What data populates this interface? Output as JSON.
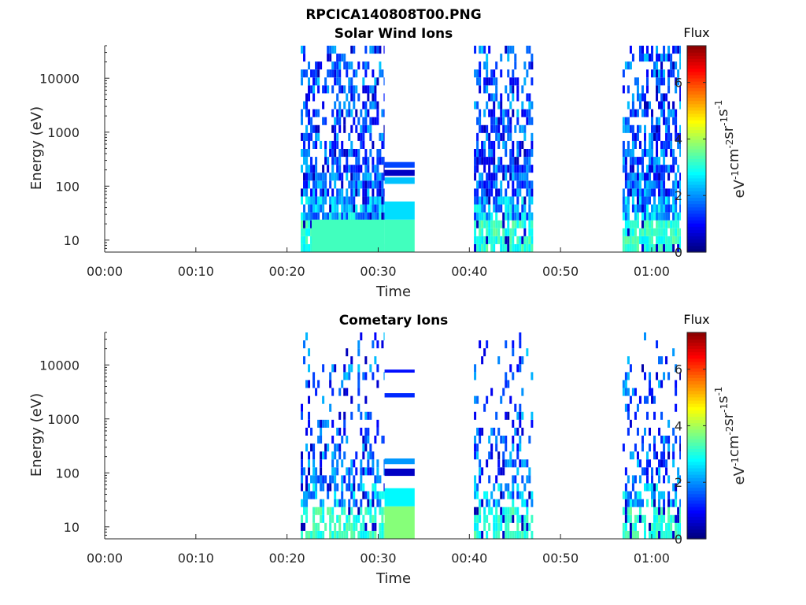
{
  "figure_title": "RPCICA140808T00.PNG",
  "colorbar": {
    "label": "Flux",
    "unit_label_parts": [
      "eV",
      "-1",
      "cm",
      "-2",
      "sr",
      "-1",
      "s",
      "-1"
    ],
    "range": [
      0,
      7.3
    ],
    "ticks": [
      "0",
      "2",
      "4",
      "6"
    ],
    "tick_values": [
      0,
      2,
      4,
      6
    ],
    "colormap": "jet"
  },
  "chart_data": [
    {
      "type": "heatmap",
      "title": "Solar Wind Ions",
      "xlabel": "Time",
      "ylabel": "Energy (eV)",
      "x_ticks": [
        "00:00",
        "00:10",
        "00:20",
        "00:30",
        "00:40",
        "00:50",
        "01:00"
      ],
      "x_tick_minutes": [
        0,
        10,
        20,
        30,
        40,
        50,
        60
      ],
      "xlim_minutes": [
        0,
        63.2
      ],
      "yscale": "log",
      "ylim": [
        6,
        40000
      ],
      "y_ticks": [
        "10",
        "100",
        "1000",
        "10000"
      ],
      "y_tick_values": [
        10,
        100,
        1000,
        10000
      ],
      "data_blocks_minutes": [
        [
          21.5,
          30.7
        ],
        [
          30.7,
          34.0
        ],
        [
          40.5,
          47.0
        ],
        [
          56.8,
          63.2
        ]
      ],
      "dense_bands": [
        {
          "x": [
            22.7,
            30.7
          ],
          "y": [
            6,
            24
          ],
          "flux": 3.2
        },
        {
          "x": [
            30.7,
            34.0
          ],
          "y": [
            6,
            24
          ],
          "flux": 3.2
        },
        {
          "x": [
            30.7,
            34.0
          ],
          "y": [
            24,
            52
          ],
          "flux": 2.5
        },
        {
          "x": [
            30.7,
            34.0
          ],
          "y": [
            110,
            145
          ],
          "flux": 2.3
        },
        {
          "x": [
            30.7,
            34.0
          ],
          "y": [
            155,
            200
          ],
          "flux": 0.5
        },
        {
          "x": [
            30.7,
            34.0
          ],
          "y": [
            220,
            280
          ],
          "flux": 1.4
        }
      ]
    },
    {
      "type": "heatmap",
      "title": "Cometary Ions",
      "xlabel": "Time",
      "ylabel": "Energy (eV)",
      "x_ticks": [
        "00:00",
        "00:10",
        "00:20",
        "00:30",
        "00:40",
        "00:50",
        "01:00"
      ],
      "x_tick_minutes": [
        0,
        10,
        20,
        30,
        40,
        50,
        60
      ],
      "xlim_minutes": [
        0,
        63.2
      ],
      "yscale": "log",
      "ylim": [
        6,
        40000
      ],
      "y_ticks": [
        "10",
        "100",
        "1000",
        "10000"
      ],
      "y_tick_values": [
        10,
        100,
        1000,
        10000
      ],
      "data_blocks_minutes": [
        [
          21.5,
          30.7
        ],
        [
          30.7,
          34.0
        ],
        [
          40.5,
          47.0
        ],
        [
          56.8,
          63.2
        ]
      ],
      "dense_bands": [
        {
          "x": [
            30.7,
            34.0
          ],
          "y": [
            6,
            24
          ],
          "flux": 3.7
        },
        {
          "x": [
            30.7,
            34.0
          ],
          "y": [
            24,
            52
          ],
          "flux": 2.7
        },
        {
          "x": [
            30.7,
            34.0
          ],
          "y": [
            88,
            120
          ],
          "flux": 0.5
        },
        {
          "x": [
            30.7,
            34.0
          ],
          "y": [
            145,
            185
          ],
          "flux": 2.0
        },
        {
          "x": [
            30.7,
            34.0
          ],
          "y": [
            2500,
            3000
          ],
          "flux": 1.2
        },
        {
          "x": [
            30.7,
            34.0
          ],
          "y": [
            7200,
            8200
          ],
          "flux": 1.0
        }
      ]
    }
  ]
}
